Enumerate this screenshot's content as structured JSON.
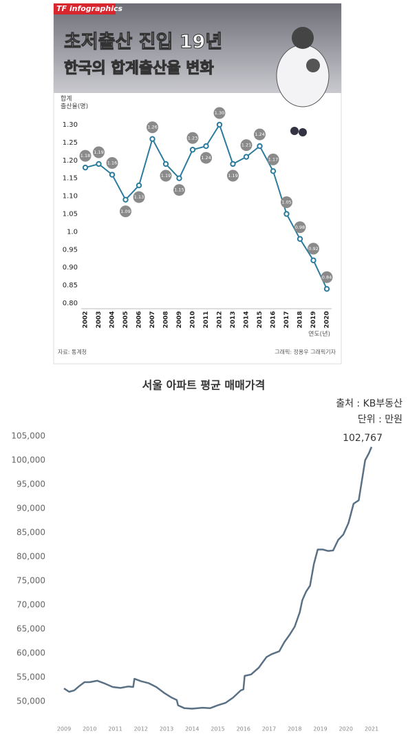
{
  "chart_data": [
    {
      "type": "line",
      "brand": "TF infographics",
      "title": "초저출산 진입 19년",
      "subtitle": "한국의 합계출산율 변화",
      "y_label": "합계\n출산율(명)",
      "x_label": "연도(년)",
      "source": "자료: 통계청",
      "credit": "그래픽: 정용우 그래픽기자",
      "categories": [
        "2002",
        "2003",
        "2004",
        "2005",
        "2006",
        "2007",
        "2008",
        "2009",
        "2010",
        "2011",
        "2012",
        "2013",
        "2014",
        "2015",
        "2016",
        "2017",
        "2018",
        "2019",
        "2020"
      ],
      "values": [
        1.18,
        1.19,
        1.16,
        1.09,
        1.13,
        1.26,
        1.19,
        1.15,
        1.23,
        1.24,
        1.3,
        1.19,
        1.21,
        1.24,
        1.17,
        1.05,
        0.98,
        0.92,
        0.84
      ],
      "value_labels": [
        "1.18",
        "1.19",
        "1.16",
        "1.09",
        "1.13",
        "1.26",
        "1.19",
        "1.15",
        "1.23",
        "1.24",
        "1.30",
        "1.19",
        "1.21",
        "1.24",
        "1.17",
        "1.05",
        "0.98",
        "0.92",
        "0.84"
      ],
      "color": "#2b7c9c",
      "ylim": [
        0.8,
        1.3
      ],
      "yticks": [
        {
          "value": 0.8,
          "label": "0.80"
        },
        {
          "value": 0.85,
          "label": "0.85"
        },
        {
          "value": 0.9,
          "label": "0.90"
        },
        {
          "value": 0.95,
          "label": "0.95"
        },
        {
          "value": 1.0,
          "label": "1.0"
        },
        {
          "value": 1.05,
          "label": "1.05"
        },
        {
          "value": 1.1,
          "label": "1.10"
        },
        {
          "value": 1.15,
          "label": "1.15"
        },
        {
          "value": 1.2,
          "label": "1.20"
        },
        {
          "value": 1.25,
          "label": "1.25"
        },
        {
          "value": 1.3,
          "label": "1.30"
        }
      ],
      "grid": false
    },
    {
      "type": "line",
      "title": "서울 아파트 평균 매매가격",
      "source": "출처 : KB부동산",
      "unit": "단위 : 만원",
      "annotation": "102,767",
      "x": [
        2009,
        2009.2,
        2009.4,
        2009.6,
        2009.8,
        2010,
        2010.3,
        2010.6,
        2010.9,
        2011.2,
        2011.5,
        2011.7,
        2011.75,
        2012,
        2012.3,
        2012.6,
        2012.9,
        2013.2,
        2013.4,
        2013.45,
        2013.7,
        2014,
        2014.4,
        2014.7,
        2015,
        2015.3,
        2015.6,
        2015.9,
        2016,
        2016.05,
        2016.3,
        2016.6,
        2016.9,
        2017.1,
        2017.4,
        2017.6,
        2017.8,
        2018,
        2018.2,
        2018.3,
        2018.45,
        2018.6,
        2018.75,
        2018.9,
        2019.1,
        2019.3,
        2019.5,
        2019.7,
        2019.9,
        2020.1,
        2020.3,
        2020.5,
        2020.6,
        2020.75,
        2020.9,
        2021
      ],
      "values": [
        52700,
        52000,
        52300,
        53200,
        54000,
        54000,
        54300,
        53700,
        53000,
        52800,
        53100,
        53000,
        54700,
        54200,
        53800,
        53000,
        51800,
        50800,
        50300,
        49200,
        48600,
        48500,
        48700,
        48600,
        49200,
        49700,
        50800,
        52300,
        52500,
        55300,
        55600,
        57000,
        59200,
        59800,
        60400,
        62300,
        63800,
        65500,
        68500,
        71000,
        72800,
        74000,
        78500,
        81500,
        81500,
        81200,
        81300,
        83500,
        84600,
        87000,
        91000,
        91700,
        95000,
        100000,
        101500,
        102767
      ],
      "color": "#5a7085",
      "xlim": [
        2009,
        2021
      ],
      "xticks": [
        2009,
        2010,
        2011,
        2012,
        2013,
        2014,
        2015,
        2016,
        2017,
        2018,
        2019,
        2020,
        2021
      ],
      "ylim": [
        50000,
        105000
      ],
      "yticks": [
        {
          "value": 50000,
          "label": "50,000"
        },
        {
          "value": 55000,
          "label": "55,000"
        },
        {
          "value": 60000,
          "label": "60,000"
        },
        {
          "value": 65000,
          "label": "65,000"
        },
        {
          "value": 70000,
          "label": "70,000"
        },
        {
          "value": 75000,
          "label": "75,000"
        },
        {
          "value": 80000,
          "label": "80,000"
        },
        {
          "value": 85000,
          "label": "85,000"
        },
        {
          "value": 90000,
          "label": "90,000"
        },
        {
          "value": 95000,
          "label": "95,000"
        },
        {
          "value": 100000,
          "label": "100,000"
        },
        {
          "value": 105000,
          "label": "105,000"
        }
      ],
      "grid": false
    }
  ]
}
